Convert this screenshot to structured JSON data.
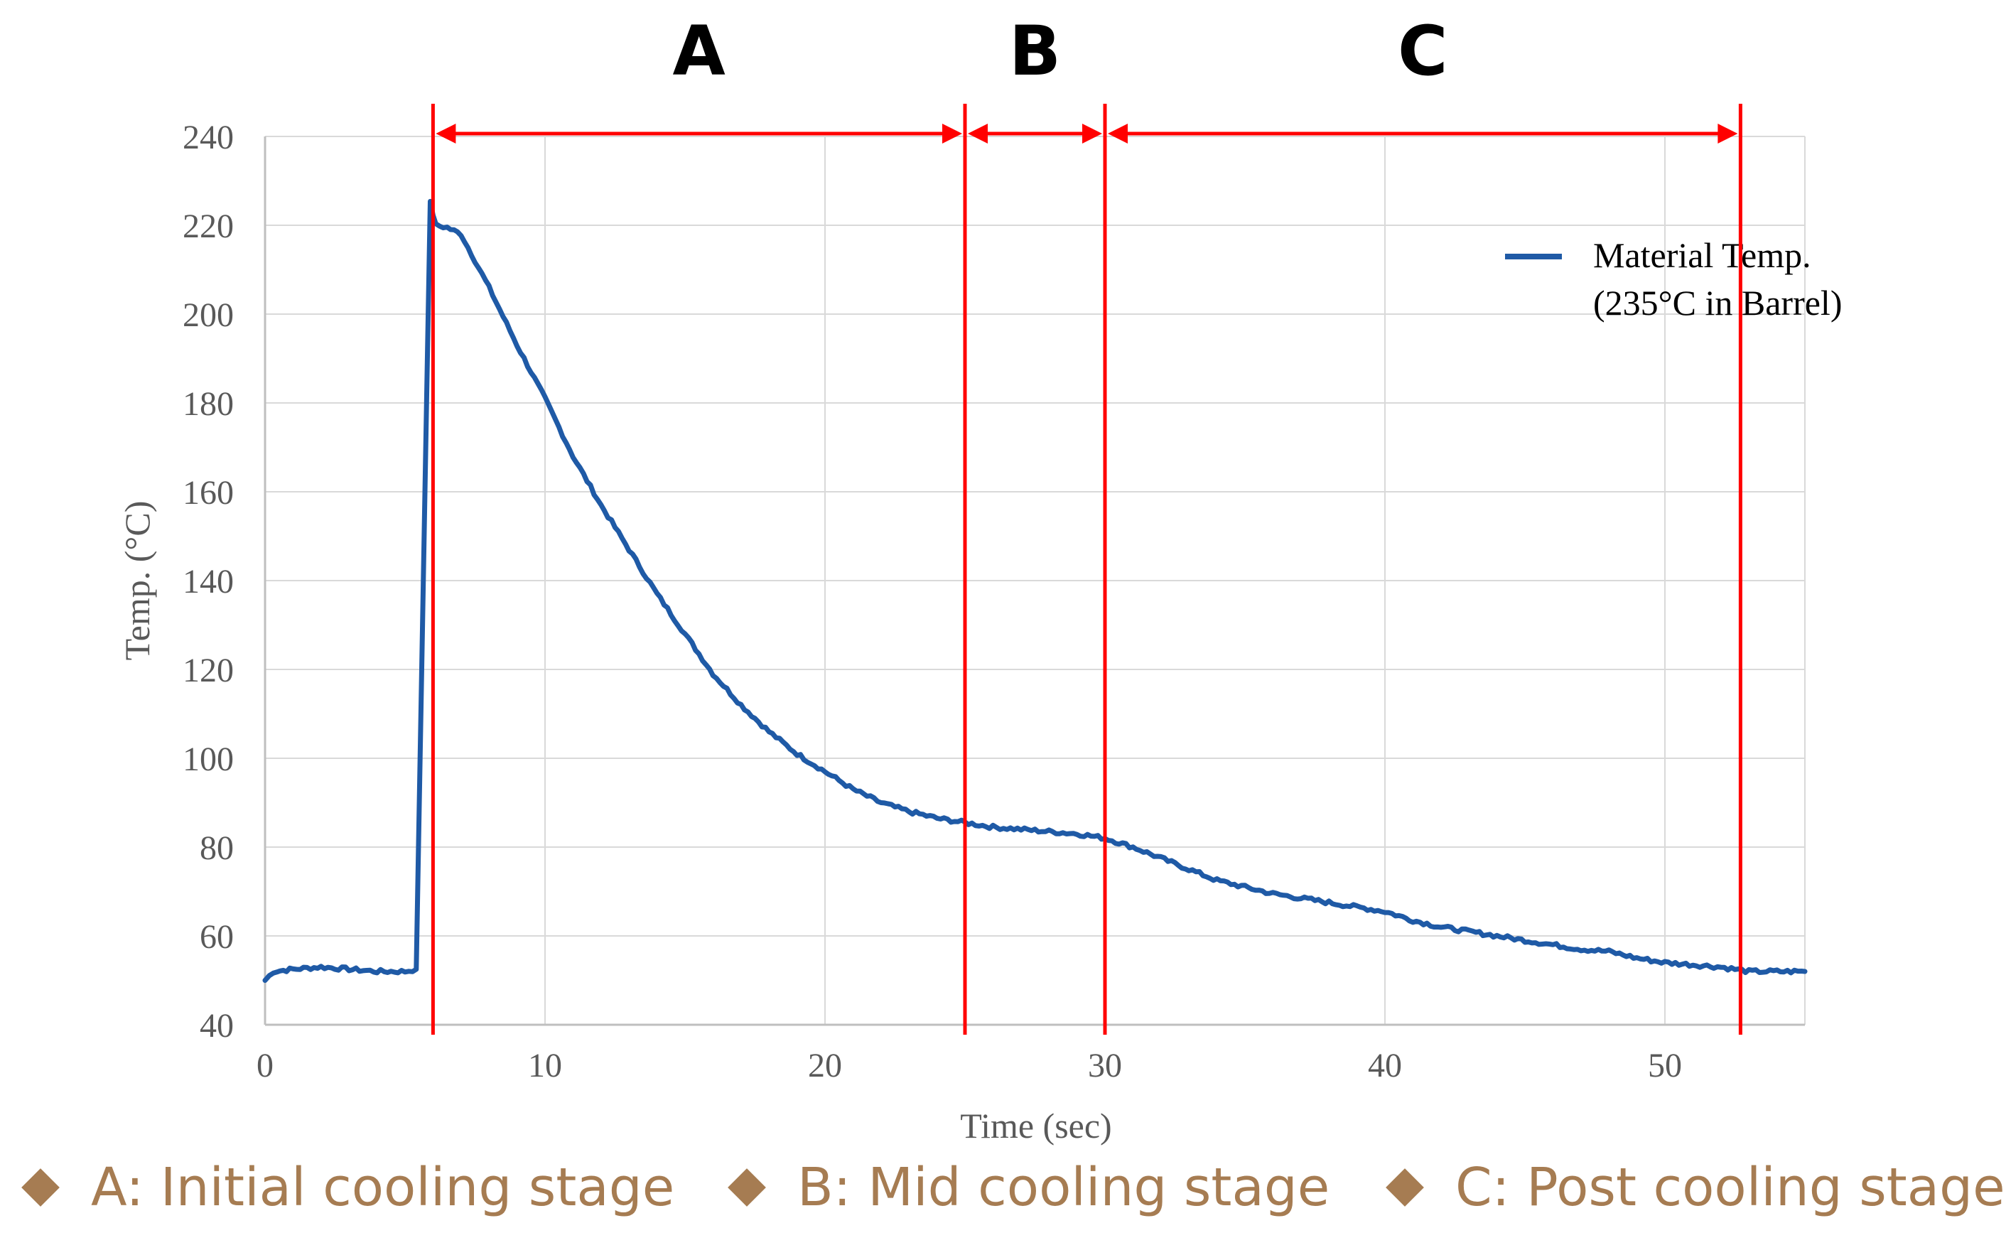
{
  "chart_data": {
    "type": "line",
    "ylabel": "Temp. (°C)",
    "xlabel": "Time (sec)",
    "xlim": [
      0,
      55
    ],
    "ylim": [
      40,
      240
    ],
    "x_ticks": [
      0,
      10,
      20,
      30,
      40,
      50
    ],
    "y_ticks": [
      40,
      60,
      80,
      100,
      120,
      140,
      160,
      180,
      200,
      220,
      240
    ],
    "grid": true,
    "legend_position": "top-right",
    "series": [
      {
        "name": "Material Temp. (235°C in Barrel)",
        "legend_lines": [
          "Material Temp.",
          "(235°C in Barrel)"
        ],
        "x": [
          0,
          0.3,
          1,
          2,
          3,
          4,
          5,
          5.4,
          5.9,
          6.1,
          6.5,
          7,
          8,
          9,
          10,
          11,
          12,
          13,
          14,
          15,
          16,
          17,
          18,
          19,
          20,
          21,
          22,
          23,
          24,
          25,
          26,
          27,
          28,
          29,
          30,
          31,
          32,
          33,
          34,
          35,
          36,
          37,
          38,
          39,
          40,
          41,
          42,
          43,
          44,
          45,
          46,
          47,
          48,
          49,
          50,
          51,
          52,
          52.5,
          53,
          54,
          55
        ],
        "y": [
          50,
          52,
          52.5,
          53,
          52.5,
          52,
          52,
          52.5,
          225,
          220,
          219.5,
          218,
          206,
          193,
          181,
          168,
          157,
          147,
          137,
          128,
          119,
          112,
          106,
          101,
          97,
          93,
          90,
          88,
          86.5,
          85.5,
          84.5,
          84,
          83.5,
          83,
          82,
          80,
          77.5,
          75,
          72.5,
          71,
          69.5,
          68.5,
          67.5,
          66.5,
          65.5,
          63.5,
          62,
          61,
          60,
          59,
          58,
          57,
          56.5,
          55,
          54,
          53.5,
          53,
          52.5,
          52,
          52,
          52
        ],
        "color": "#1F5AA6"
      }
    ],
    "stage_lines_x": [
      6,
      25,
      30,
      52.7
    ],
    "stages": [
      {
        "letter": "A",
        "from": 6,
        "to": 25
      },
      {
        "letter": "B",
        "from": 25,
        "to": 30
      },
      {
        "letter": "C",
        "from": 30,
        "to": 52.7
      }
    ],
    "marker_color": "#FF0000",
    "grid_color": "#D9D9D9"
  },
  "stage_legend": [
    {
      "label": "A: Initial cooling stage"
    },
    {
      "label": "B: Mid cooling stage"
    },
    {
      "label": "C: Post cooling stage"
    }
  ],
  "stage_legend_color": "#A67C52"
}
